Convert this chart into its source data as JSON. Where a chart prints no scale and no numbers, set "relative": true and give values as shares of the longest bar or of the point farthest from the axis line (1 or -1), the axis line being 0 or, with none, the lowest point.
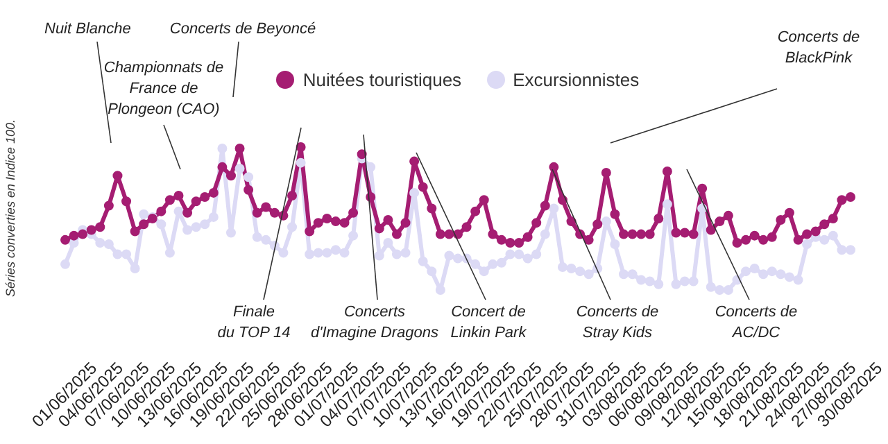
{
  "chart_data": {
    "type": "line",
    "relative": true,
    "ylabel": "Séries converties en Indice 100.",
    "legend": "top",
    "marker": "circle",
    "categories": [
      "01/06/2025",
      null,
      null,
      "04/06/2025",
      null,
      null,
      "07/06/2025",
      null,
      null,
      "10/06/2025",
      null,
      null,
      "13/06/2025",
      null,
      null,
      "16/06/2025",
      null,
      null,
      "19/06/2025",
      null,
      null,
      "22/06/2025",
      null,
      null,
      "25/06/2025",
      null,
      null,
      "28/06/2025",
      null,
      null,
      "01/07/2025",
      null,
      null,
      "04/07/2025",
      null,
      null,
      "07/07/2025",
      null,
      null,
      "10/07/2025",
      null,
      null,
      "13/07/2025",
      null,
      null,
      "16/07/2025",
      null,
      null,
      "19/07/2025",
      null,
      null,
      "22/07/2025",
      null,
      null,
      "25/07/2025",
      null,
      null,
      "28/07/2025",
      null,
      null,
      "31/07/2025",
      null,
      null,
      "03/08/2025",
      null,
      null,
      "06/08/2025",
      null,
      null,
      "09/08/2025",
      null,
      null,
      "12/08/2025",
      null,
      null,
      "15/08/2025",
      null,
      null,
      "18/08/2025",
      null,
      null,
      "21/08/2025",
      null,
      null,
      "24/08/2025",
      null,
      null,
      "27/08/2025",
      null,
      null,
      "30/08/2025"
    ],
    "series": [
      {
        "name": "Nuitées touristiques",
        "color": "#a51d72",
        "values": [
          0.35,
          0.38,
          0.39,
          0.42,
          0.44,
          0.59,
          0.8,
          0.62,
          0.41,
          0.46,
          0.5,
          0.55,
          0.63,
          0.66,
          0.54,
          0.62,
          0.65,
          0.68,
          0.86,
          0.8,
          0.99,
          0.7,
          0.54,
          0.58,
          0.54,
          0.52,
          0.66,
          1,
          0.41,
          0.47,
          0.5,
          0.48,
          0.47,
          0.54,
          0.95,
          0.65,
          0.43,
          0.49,
          0.39,
          0.47,
          0.9,
          0.72,
          0.57,
          0.39,
          0.39,
          0.39,
          0.44,
          0.55,
          0.63,
          0.39,
          0.35,
          0.33,
          0.33,
          0.37,
          0.47,
          0.59,
          0.86,
          0.63,
          0.48,
          0.39,
          0.35,
          0.46,
          0.82,
          0.53,
          0.39,
          0.39,
          0.39,
          0.39,
          0.5,
          0.83,
          0.4,
          0.4,
          0.39,
          0.71,
          0.42,
          0.48,
          0.52,
          0.33,
          0.35,
          0.38,
          0.35,
          0.37,
          0.49,
          0.54,
          0.35,
          0.39,
          0.41,
          0.46,
          0.5,
          0.63,
          0.65
        ]
      },
      {
        "name": "Excursionnistes",
        "color": "#dcdaf5",
        "values": [
          0.18,
          0.33,
          0.42,
          0.39,
          0.33,
          0.32,
          0.25,
          0.25,
          0.15,
          0.53,
          0.51,
          0.46,
          0.26,
          0.55,
          0.42,
          0.44,
          0.46,
          0.51,
          0.99,
          0.4,
          0.85,
          0.79,
          0.37,
          0.35,
          0.31,
          0.26,
          0.44,
          0.89,
          0.25,
          0.26,
          0.26,
          0.28,
          0.26,
          0.38,
          0.92,
          0.86,
          0.24,
          0.33,
          0.25,
          0.26,
          0.68,
          0.2,
          0.13,
          0,
          0.24,
          0.22,
          0.22,
          0.18,
          0.13,
          0.18,
          0.19,
          0.25,
          0.25,
          0.22,
          0.25,
          0.39,
          0.57,
          0.16,
          0.15,
          0.13,
          0.11,
          0.15,
          0.48,
          0.32,
          0.11,
          0.11,
          0.07,
          0.06,
          0.04,
          0.6,
          0.04,
          0.06,
          0.06,
          0.57,
          0.02,
          0,
          0,
          0.07,
          0.13,
          0.15,
          0.11,
          0.13,
          0.11,
          0.09,
          0.07,
          0.32,
          0.37,
          0.35,
          0.38,
          0.28,
          0.28
        ]
      }
    ],
    "annotations": [
      "Nuit Blanche",
      "Championnats de\nFrance de\nPlongeon (CAO)",
      "Concerts de Beyoncé",
      "Finale\ndu TOP 14",
      "Concerts\nd'Imagine Dragons",
      "Concert de\nLinkin Park",
      "Concerts de\nStray Kids",
      "Concerts de\nBlackPink",
      "Concerts de\nAC/DC"
    ]
  }
}
